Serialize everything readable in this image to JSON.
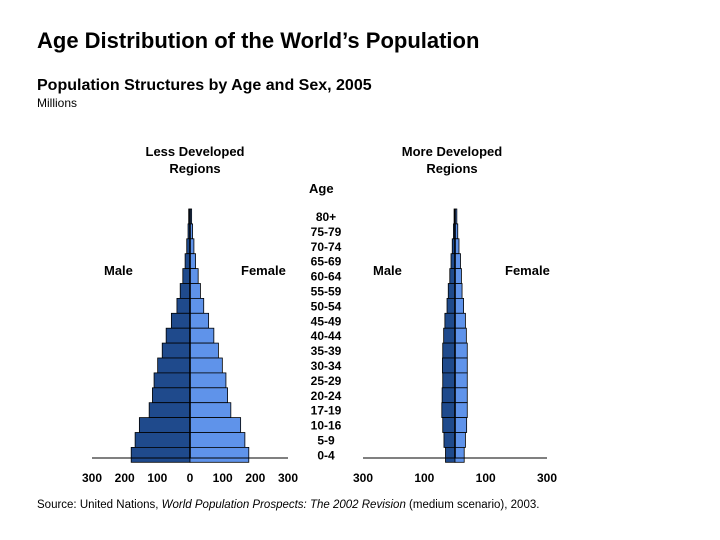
{
  "title": "Age Distribution of the World’s Population",
  "subtitle": "Population Structures by Age and Sex, 2005",
  "units": "Millions",
  "age_header": "Age",
  "source": {
    "prefix": "Source: United Nations, ",
    "italic": "World Population Prospects: The 2002 Revision",
    "suffix": " (medium scenario), 2003."
  },
  "colors": {
    "male": "#1f4a8c",
    "female": "#5f93ea",
    "stroke": "#000000"
  },
  "chart_data": [
    {
      "type": "bar",
      "title": "Less Developed Regions",
      "title_lines": [
        "Less Developed",
        "Regions"
      ],
      "male_label": "Male",
      "female_label": "Female",
      "categories": [
        "80+",
        "75-79",
        "70-74",
        "65-69",
        "60-64",
        "55-59",
        "50-54",
        "45-49",
        "40-44",
        "35-39",
        "30-34",
        "25-29",
        "20-24",
        "17-19",
        "10-16",
        "5-9",
        "0-4"
      ],
      "series": [
        {
          "name": "Male",
          "values": [
            4,
            6,
            10,
            15,
            22,
            30,
            40,
            57,
            73,
            85,
            99,
            110,
            115,
            125,
            155,
            168,
            180
          ]
        },
        {
          "name": "Female",
          "values": [
            5,
            8,
            12,
            17,
            25,
            32,
            42,
            57,
            73,
            87,
            99,
            110,
            115,
            125,
            155,
            168,
            180
          ]
        }
      ],
      "xaxis_ticks_male": [
        "300",
        "200",
        "100",
        "0"
      ],
      "xaxis_ticks_female": [
        "100",
        "200",
        "300"
      ],
      "xlim": [
        -300,
        300
      ]
    },
    {
      "type": "bar",
      "title": "More Developed Regions",
      "title_lines": [
        "More Developed",
        "Regions"
      ],
      "male_label": "Male",
      "female_label": "Female",
      "categories": [
        "80+",
        "75-79",
        "70-74",
        "65-69",
        "60-64",
        "55-59",
        "50-54",
        "45-49",
        "40-44",
        "35-39",
        "30-34",
        "25-29",
        "20-24",
        "17-19",
        "10-16",
        "5-9",
        "0-4"
      ],
      "series": [
        {
          "name": "Male",
          "values": [
            3,
            5,
            9,
            13,
            17,
            22,
            26,
            33,
            37,
            40,
            41,
            40,
            42,
            43,
            40,
            36,
            31
          ]
        },
        {
          "name": "Female",
          "values": [
            6,
            9,
            13,
            18,
            21,
            23,
            28,
            34,
            37,
            40,
            40,
            40,
            40,
            40,
            38,
            34,
            30
          ]
        }
      ],
      "xaxis_ticks_male": [
        "300",
        "100"
      ],
      "xaxis_ticks_female": [
        "100",
        "300"
      ],
      "xlim": [
        -300,
        300
      ]
    }
  ]
}
